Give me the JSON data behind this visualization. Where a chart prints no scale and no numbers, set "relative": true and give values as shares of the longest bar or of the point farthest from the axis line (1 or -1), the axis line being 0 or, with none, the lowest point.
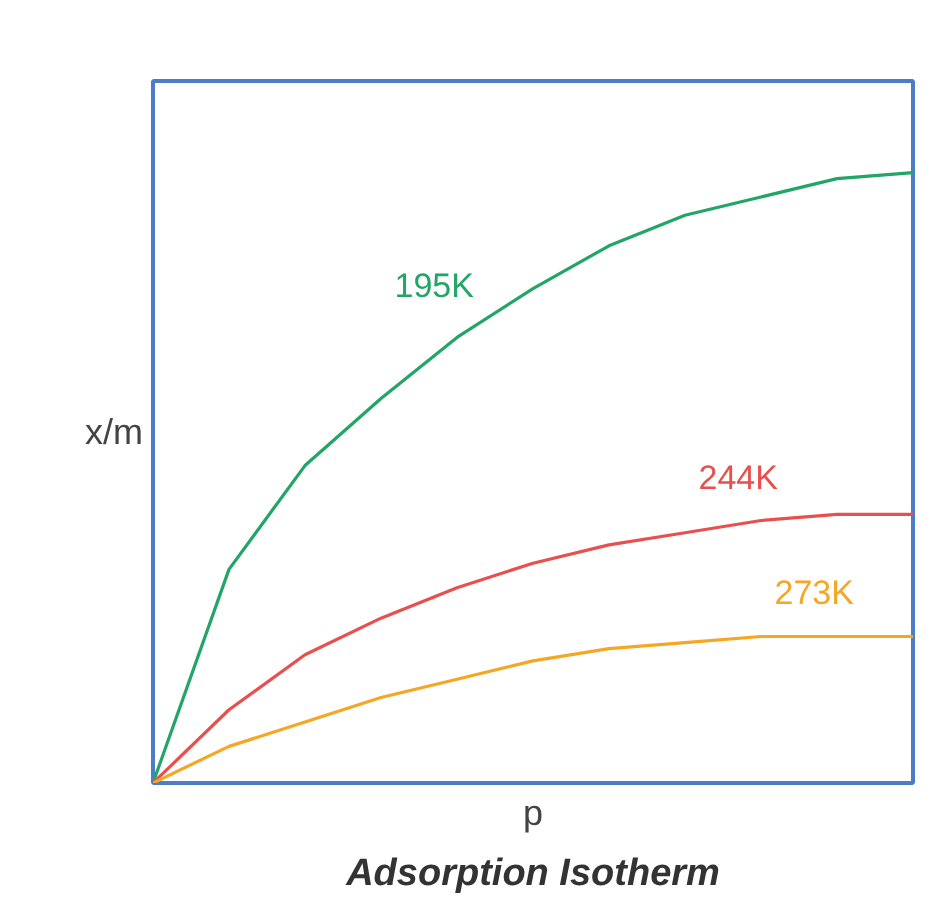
{
  "chart_data": {
    "type": "line",
    "title": "Adsorption Isotherm",
    "xlabel": "p",
    "ylabel": "x/m",
    "relative": true,
    "categories": [
      null,
      null,
      null,
      null,
      null,
      null,
      null,
      null,
      null,
      null,
      null
    ],
    "series": [
      {
        "name": "195K",
        "color": "#22a566",
        "values": [
          0,
          0.35,
          0.52,
          0.63,
          0.73,
          0.81,
          0.88,
          0.93,
          0.96,
          0.99,
          1
        ]
      },
      {
        "name": "244K",
        "color": "#e8504f",
        "values": [
          0,
          0.12,
          0.21,
          0.27,
          0.32,
          0.36,
          0.39,
          0.41,
          0.43,
          0.44,
          0.44
        ]
      },
      {
        "name": "273K",
        "color": "#f5a623",
        "values": [
          0,
          0.06,
          0.1,
          0.14,
          0.17,
          0.2,
          0.22,
          0.23,
          0.24,
          0.24,
          0.24
        ]
      }
    ]
  }
}
